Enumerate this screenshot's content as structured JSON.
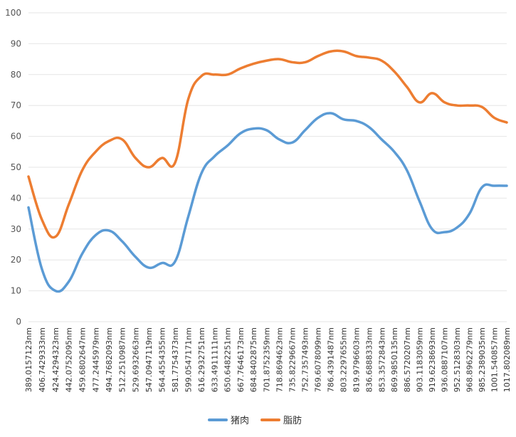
{
  "chart_data": {
    "type": "line",
    "ylim": [
      0,
      100
    ],
    "yticks": [
      0,
      10,
      20,
      30,
      40,
      50,
      60,
      70,
      80,
      90,
      100
    ],
    "grid": true,
    "legend_position": "bottom",
    "x_tick_labels": [
      "389.0157123nm",
      "406.7429333nm",
      "424.4294323nm",
      "442.0752095nm",
      "459.6802647nm",
      "477.2445979nm",
      "494.7682093nm",
      "512.2510987nm",
      "529.6932663nm",
      "547.0947119nm",
      "564.4554355nm",
      "581.7754373nm",
      "599.0547171nm",
      "616.2932751nm",
      "633.4911111nm",
      "650.6482251nm",
      "667.7646173nm",
      "684.8402875nm",
      "701.8752359nm",
      "718.8694623nm",
      "735.8229667nm",
      "752.7357493nm",
      "769.6078099nm",
      "786.4391487nm",
      "803.2297655nm",
      "819.9796603nm",
      "836.6888333nm",
      "853.3572843nm",
      "869.9850135nm",
      "886.5720207nm",
      "903.1183059nm",
      "919.6238693nm",
      "936.0887107nm",
      "952.5128303nm",
      "968.8962279nm",
      "985.2389035nm",
      "1001.540857nm",
      "1017.802089nm"
    ],
    "x": [
      389.0157123,
      406.7429333,
      424.4294323,
      442.0752095,
      459.6802647,
      477.2445979,
      494.7682093,
      512.2510987,
      529.6932663,
      547.0947119,
      564.4554355,
      581.7754373,
      599.0547171,
      616.2932751,
      633.4911111,
      650.6482251,
      667.7646173,
      684.8402875,
      701.8752359,
      718.8694623,
      735.8229667,
      752.7357493,
      769.6078099,
      786.4391487,
      803.2297655,
      819.9796603,
      836.6888333,
      853.3572843,
      869.9850135,
      886.5720207,
      903.1183059,
      919.6238693,
      936.0887107,
      952.5128303,
      968.8962279,
      985.2389035,
      1001.540857,
      1017.802089
    ],
    "series": [
      {
        "name": "猪肉",
        "color": "#5b9bd5",
        "values": [
          37,
          17,
          10,
          13,
          22,
          28,
          29.5,
          26,
          21,
          17.5,
          19,
          19.5,
          34,
          48,
          53.5,
          57,
          61,
          62.5,
          62,
          59,
          58,
          62,
          66,
          67.5,
          65.5,
          65,
          63,
          59,
          55,
          49,
          39,
          30,
          29,
          30.5,
          35,
          43.5,
          44,
          44
        ]
      },
      {
        "name": "脂肪",
        "color": "#ed7d31",
        "values": [
          47,
          33,
          27.5,
          38,
          49,
          55,
          58.5,
          59,
          53,
          50,
          53,
          51.5,
          72,
          79.5,
          80,
          80,
          82,
          83.5,
          84.5,
          85,
          84,
          84,
          86,
          87.5,
          87.5,
          86,
          85.5,
          84.5,
          81,
          76,
          71,
          74,
          71,
          70,
          70,
          69.5,
          66,
          64.5
        ]
      }
    ]
  }
}
